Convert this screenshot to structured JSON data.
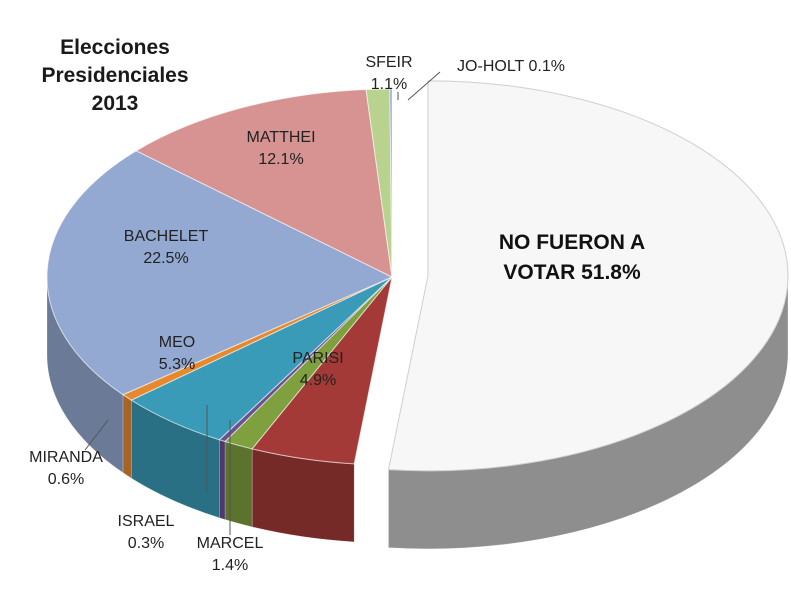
{
  "chart_data": {
    "type": "pie",
    "style": "3d-exploded",
    "title_lines": [
      "Elecciones",
      "Presidenciales",
      "2013"
    ],
    "slices": [
      {
        "name": "NO FUERON A VOTAR",
        "value": 51.8,
        "label": "51.8%",
        "color": "#f7f7f7"
      },
      {
        "name": "PARISI",
        "value": 4.9,
        "label": "4.9%",
        "color": "#a33a37"
      },
      {
        "name": "MARCEL",
        "value": 1.4,
        "label": "1.4%",
        "color": "#7fa03e"
      },
      {
        "name": "ISRAEL",
        "value": 0.3,
        "label": "0.3%",
        "color": "#6a4f92"
      },
      {
        "name": "MEO",
        "value": 5.3,
        "label": "5.3%",
        "color": "#3a9bb8"
      },
      {
        "name": "MIRANDA",
        "value": 0.6,
        "label": "0.6%",
        "color": "#e6892e"
      },
      {
        "name": "BACHELET",
        "value": 22.5,
        "label": "22.5%",
        "color": "#93a9d2"
      },
      {
        "name": "MATTHEI",
        "value": 12.1,
        "label": "12.1%",
        "color": "#d69391"
      },
      {
        "name": "SFEIR",
        "value": 1.1,
        "label": "1.1%",
        "color": "#b9d38f"
      },
      {
        "name": "JO-HOLT",
        "value": 0.1,
        "label": "0.1%",
        "color": "#8aa4d4"
      }
    ]
  }
}
